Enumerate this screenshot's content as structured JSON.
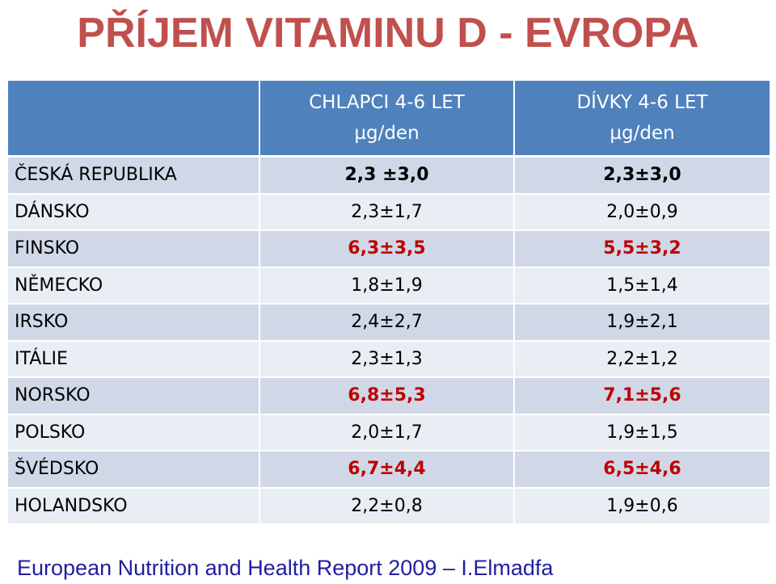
{
  "title": "PŘÍJEM VITAMINU D - EVROPA",
  "table": {
    "header": {
      "corner": "",
      "col_boys_line1": "CHLAPCI  4-6 LET",
      "col_boys_line2": "µg/den",
      "col_girls_line1": "DÍVKY  4-6 LET",
      "col_girls_line2": "µg/den"
    },
    "rows": [
      {
        "country": "ČESKÁ REPUBLIKA",
        "boys": "2,3 ±3,0",
        "girls": "2,3±3,0",
        "style": "bold"
      },
      {
        "country": "DÁNSKO",
        "boys": "2,3±1,7",
        "girls": "2,0±0,9",
        "style": "normal"
      },
      {
        "country": "FINSKO",
        "boys": "6,3±3,5",
        "girls": "5,5±3,2",
        "style": "red"
      },
      {
        "country": "NĚMECKO",
        "boys": "1,8±1,9",
        "girls": "1,5±1,4",
        "style": "normal"
      },
      {
        "country": "IRSKO",
        "boys": "2,4±2,7",
        "girls": "1,9±2,1",
        "style": "normal"
      },
      {
        "country": "ITÁLIE",
        "boys": "2,3±1,3",
        "girls": "2,2±1,2",
        "style": "normal"
      },
      {
        "country": "NORSKO",
        "boys": "6,8±5,3",
        "girls": "7,1±5,6",
        "style": "red"
      },
      {
        "country": "POLSKO",
        "boys": "2,0±1,7",
        "girls": "1,9±1,5",
        "style": "normal"
      },
      {
        "country": "ŠVÉDSKO",
        "boys": "6,7±4,4",
        "girls": "6,5±4,6",
        "style": "red"
      },
      {
        "country": "HOLANDSKO",
        "boys": "2,2±0,8",
        "girls": "1,9±0,6",
        "style": "normal"
      }
    ]
  },
  "source": "European  Nutrition and Health Report 2009 – I.Elmadfa",
  "colors": {
    "title": "#c0504d",
    "header_bg": "#4f81bd",
    "row_odd": "#d0d8e8",
    "row_even": "#e9edf4",
    "highlight_value": "#c00000",
    "source_text": "#1f1f9f"
  }
}
